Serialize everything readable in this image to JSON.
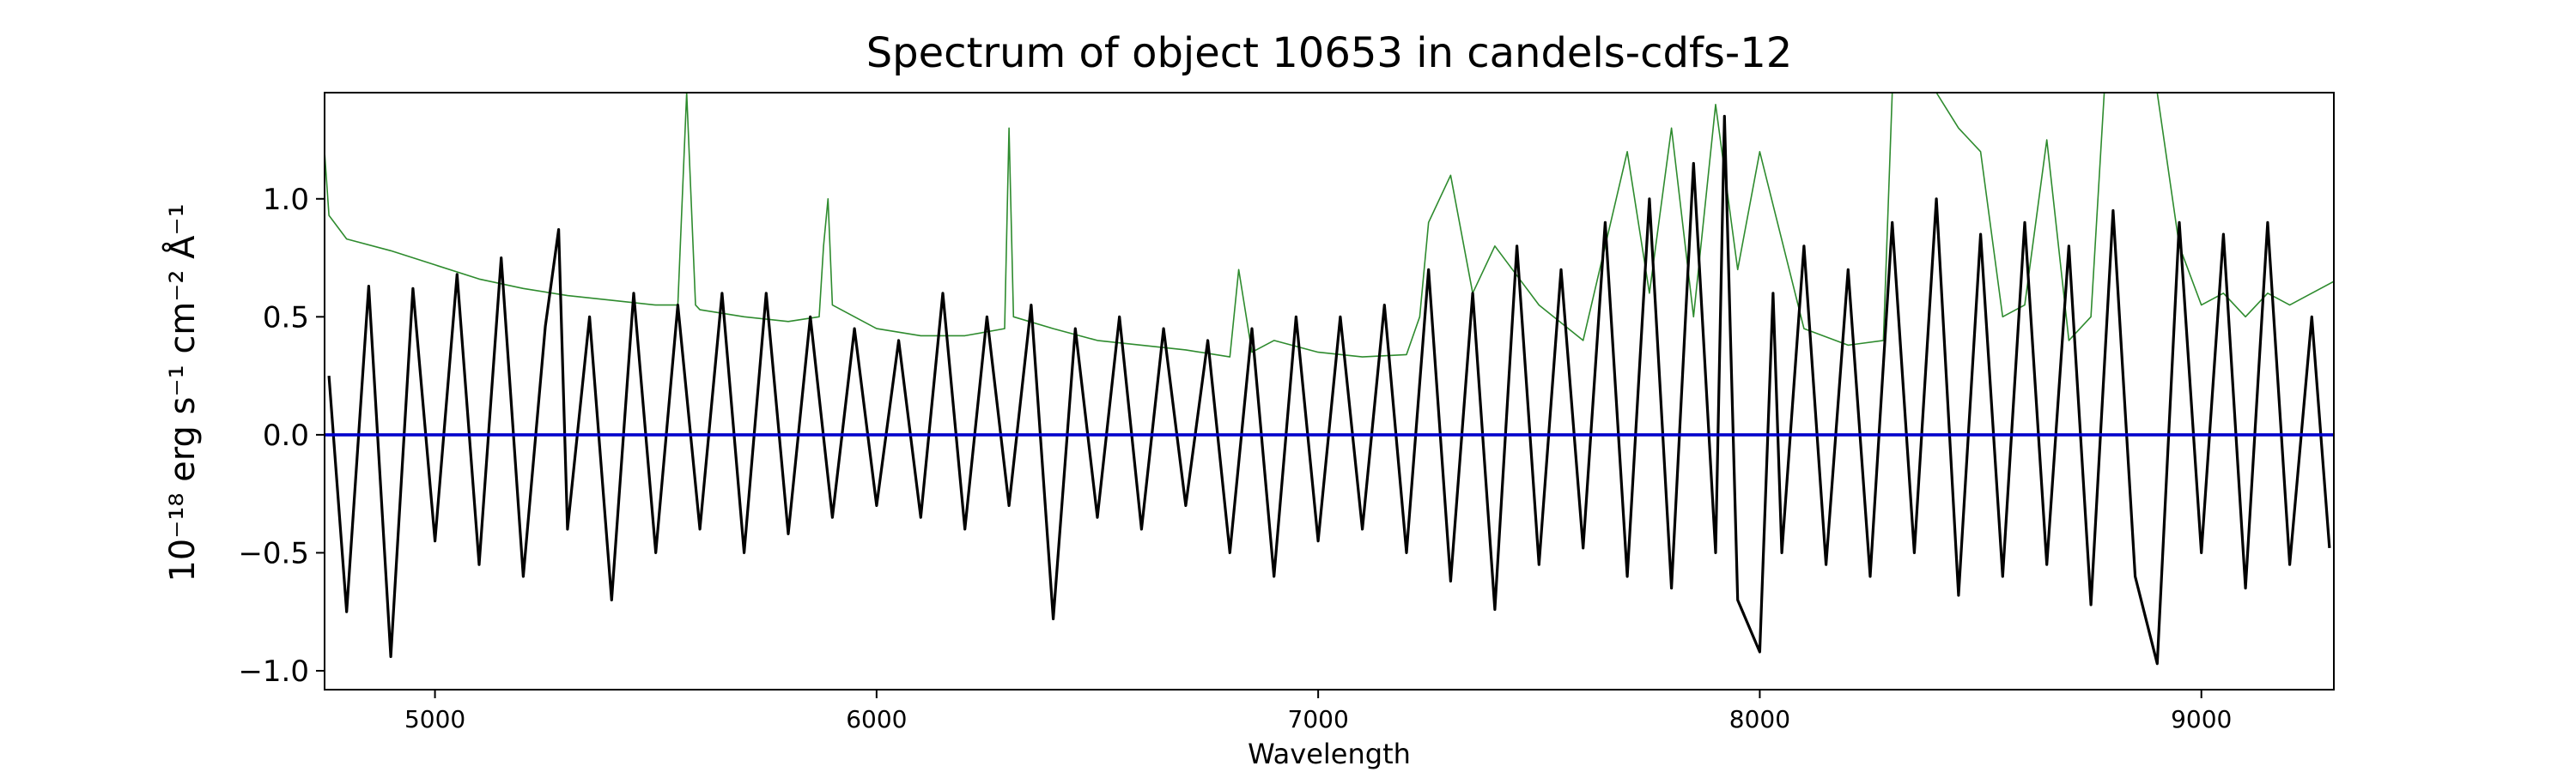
{
  "chart_data": {
    "type": "line",
    "title": "Spectrum of object 10653 in candels-cdfs-12",
    "xlabel": "Wavelength",
    "ylabel": "10⁻¹⁸ erg s⁻¹ cm⁻² Å⁻¹",
    "xlim": [
      4750,
      9300
    ],
    "ylim": [
      -1.08,
      1.45
    ],
    "xticks": [
      5000,
      6000,
      7000,
      8000,
      9000
    ],
    "yticks": [
      -1.0,
      -0.5,
      0.0,
      0.5,
      1.0
    ],
    "xtick_labels": [
      "5000",
      "6000",
      "7000",
      "8000",
      "9000"
    ],
    "ytick_labels": [
      "−1.0",
      "−0.5",
      "0.0",
      "0.5",
      "1.0"
    ],
    "grid": false,
    "colors": {
      "flux": "#000000",
      "error": "#2e8b2e",
      "zero": "#0000cc"
    },
    "series": [
      {
        "role": "flux",
        "x": [
          4760,
          4800,
          4850,
          4900,
          4950,
          5000,
          5050,
          5100,
          5150,
          5200,
          5250,
          5280,
          5300,
          5350,
          5400,
          5450,
          5500,
          5550,
          5600,
          5650,
          5700,
          5750,
          5800,
          5850,
          5900,
          5950,
          6000,
          6050,
          6100,
          6150,
          6200,
          6250,
          6300,
          6350,
          6400,
          6450,
          6500,
          6550,
          6600,
          6650,
          6700,
          6750,
          6800,
          6850,
          6900,
          6950,
          7000,
          7050,
          7100,
          7150,
          7200,
          7250,
          7300,
          7350,
          7400,
          7450,
          7500,
          7550,
          7600,
          7650,
          7700,
          7750,
          7800,
          7850,
          7900,
          7920,
          7950,
          8000,
          8030,
          8050,
          8100,
          8150,
          8200,
          8250,
          8300,
          8350,
          8400,
          8450,
          8500,
          8550,
          8600,
          8650,
          8700,
          8750,
          8800,
          8850,
          8900,
          8950,
          9000,
          9050,
          9100,
          9150,
          9200,
          9250,
          9290
        ],
        "y": [
          0.25,
          -0.75,
          0.63,
          -0.94,
          0.62,
          -0.45,
          0.68,
          -0.55,
          0.75,
          -0.6,
          0.46,
          0.87,
          -0.4,
          0.5,
          -0.7,
          0.6,
          -0.5,
          0.55,
          -0.4,
          0.6,
          -0.5,
          0.6,
          -0.42,
          0.5,
          -0.35,
          0.45,
          -0.3,
          0.4,
          -0.35,
          0.6,
          -0.4,
          0.5,
          -0.3,
          0.55,
          -0.78,
          0.45,
          -0.35,
          0.5,
          -0.4,
          0.45,
          -0.3,
          0.4,
          -0.5,
          0.45,
          -0.6,
          0.5,
          -0.45,
          0.5,
          -0.4,
          0.55,
          -0.5,
          0.7,
          -0.62,
          0.6,
          -0.74,
          0.8,
          -0.55,
          0.7,
          -0.48,
          0.9,
          -0.6,
          1.0,
          -0.65,
          1.15,
          -0.5,
          1.35,
          -0.7,
          -0.92,
          0.6,
          -0.5,
          0.8,
          -0.55,
          0.7,
          -0.6,
          0.9,
          -0.5,
          1.0,
          -0.68,
          0.85,
          -0.6,
          0.9,
          -0.55,
          0.8,
          -0.72,
          0.95,
          -0.6,
          -0.97,
          0.9,
          -0.5,
          0.85,
          -0.65,
          0.9,
          -0.55,
          0.5,
          -0.48
        ]
      },
      {
        "role": "error",
        "x": [
          4750,
          4760,
          4800,
          4900,
          5000,
          5100,
          5200,
          5300,
          5400,
          5500,
          5550,
          5570,
          5590,
          5600,
          5700,
          5800,
          5870,
          5880,
          5890,
          5900,
          5950,
          6000,
          6100,
          6200,
          6290,
          6300,
          6310,
          6400,
          6500,
          6600,
          6700,
          6800,
          6820,
          6850,
          6900,
          7000,
          7100,
          7200,
          7230,
          7250,
          7300,
          7350,
          7400,
          7500,
          7600,
          7700,
          7750,
          7800,
          7850,
          7900,
          7950,
          8000,
          8100,
          8200,
          8280,
          8300,
          8350,
          8400,
          8450,
          8500,
          8550,
          8600,
          8650,
          8700,
          8750,
          8780,
          8800,
          8850,
          8900,
          8950,
          9000,
          9050,
          9100,
          9150,
          9200,
          9250,
          9300
        ],
        "y": [
          1.2,
          0.93,
          0.83,
          0.78,
          0.72,
          0.66,
          0.62,
          0.59,
          0.57,
          0.55,
          0.55,
          1.45,
          0.55,
          0.53,
          0.5,
          0.48,
          0.5,
          0.8,
          1.0,
          0.55,
          0.5,
          0.45,
          0.42,
          0.42,
          0.45,
          1.3,
          0.5,
          0.45,
          0.4,
          0.38,
          0.36,
          0.33,
          0.7,
          0.35,
          0.4,
          0.35,
          0.33,
          0.34,
          0.5,
          0.9,
          1.1,
          0.6,
          0.8,
          0.55,
          0.4,
          1.2,
          0.6,
          1.3,
          0.5,
          1.4,
          0.7,
          1.2,
          0.45,
          0.38,
          0.4,
          1.45,
          1.45,
          1.45,
          1.3,
          1.2,
          0.5,
          0.55,
          1.25,
          0.4,
          0.5,
          1.45,
          1.45,
          1.45,
          1.45,
          0.8,
          0.55,
          0.6,
          0.5,
          0.6,
          0.55,
          0.6,
          0.65
        ]
      },
      {
        "role": "zero",
        "x": [
          4750,
          9300
        ],
        "y": [
          0.0,
          0.0
        ]
      }
    ]
  }
}
